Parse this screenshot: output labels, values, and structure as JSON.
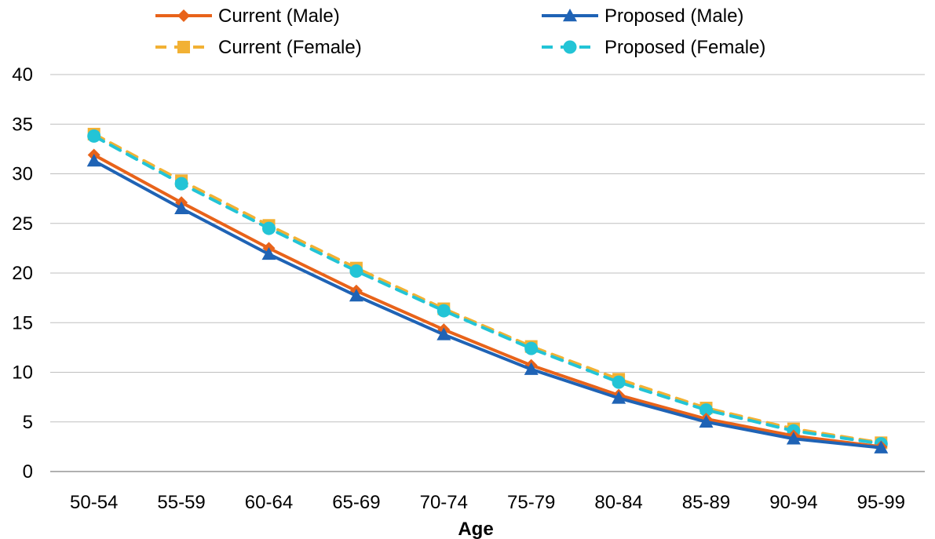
{
  "chart_data": {
    "type": "line",
    "title": "",
    "xlabel": "Age",
    "ylabel": "",
    "categories": [
      "50-54",
      "55-59",
      "60-64",
      "65-69",
      "70-74",
      "75-79",
      "80-84",
      "85-89",
      "90-94",
      "95-99"
    ],
    "ylim": [
      0,
      40
    ],
    "yticks": [
      0,
      5,
      10,
      15,
      20,
      25,
      30,
      35,
      40
    ],
    "grid": true,
    "legend_position": "top",
    "series": [
      {
        "name": "Current (Male)",
        "color": "#E8631A",
        "marker": "diamond",
        "dashed": false,
        "values": [
          31.9,
          27.1,
          22.5,
          18.2,
          14.3,
          10.7,
          7.7,
          5.3,
          3.6,
          2.5
        ]
      },
      {
        "name": "Proposed (Male)",
        "color": "#1F63B5",
        "marker": "triangle",
        "dashed": false,
        "values": [
          31.3,
          26.5,
          21.9,
          17.7,
          13.8,
          10.3,
          7.4,
          5.0,
          3.3,
          2.4
        ]
      },
      {
        "name": "Current (Female)",
        "color": "#F2B134",
        "marker": "square",
        "dashed": true,
        "values": [
          34.0,
          29.3,
          24.8,
          20.5,
          16.4,
          12.6,
          9.3,
          6.4,
          4.3,
          2.9
        ]
      },
      {
        "name": "Proposed (Female)",
        "color": "#23C4D6",
        "marker": "circle",
        "dashed": true,
        "values": [
          33.8,
          29.0,
          24.5,
          20.2,
          16.2,
          12.4,
          9.0,
          6.2,
          4.1,
          2.8
        ]
      }
    ]
  }
}
